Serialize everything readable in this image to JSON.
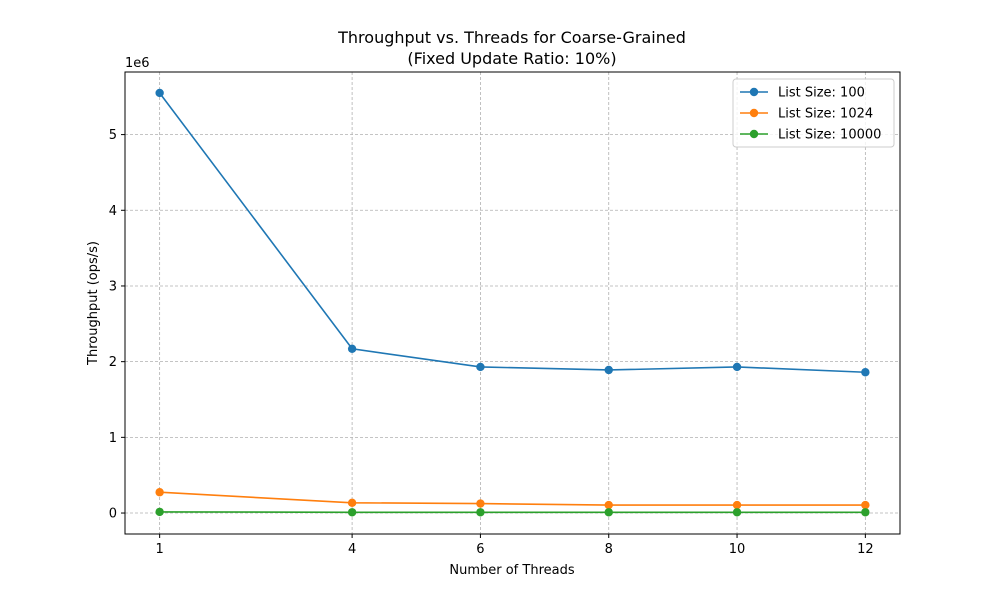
{
  "chart_data": {
    "type": "line",
    "title": "Throughput vs. Threads for Coarse-Grained",
    "subtitle": "(Fixed Update Ratio: 10%)",
    "xlabel": "Number of Threads",
    "ylabel": "Throughput (ops/s)",
    "y_offset_label": "1e6",
    "x": [
      1,
      4,
      6,
      8,
      10,
      12
    ],
    "xlim": [
      0.46,
      12.54
    ],
    "ylim": [
      -277000,
      5827000
    ],
    "x_ticks": [
      1,
      4,
      6,
      8,
      10,
      12
    ],
    "y_ticks": [
      0,
      1000000,
      2000000,
      3000000,
      4000000,
      5000000
    ],
    "y_tick_labels": [
      "0",
      "1",
      "2",
      "3",
      "4",
      "5"
    ],
    "grid": true,
    "legend_position": "top-right",
    "series": [
      {
        "name": "List Size: 100",
        "color": "#1f77b4",
        "values": [
          5550000,
          2170000,
          1930000,
          1890000,
          1930000,
          1860000
        ]
      },
      {
        "name": "List Size: 1024",
        "color": "#ff7f0e",
        "values": [
          275000,
          135000,
          125000,
          105000,
          105000,
          105000
        ]
      },
      {
        "name": "List Size: 10000",
        "color": "#2ca02c",
        "values": [
          15000,
          10000,
          10000,
          10000,
          10000,
          10000
        ]
      }
    ]
  }
}
